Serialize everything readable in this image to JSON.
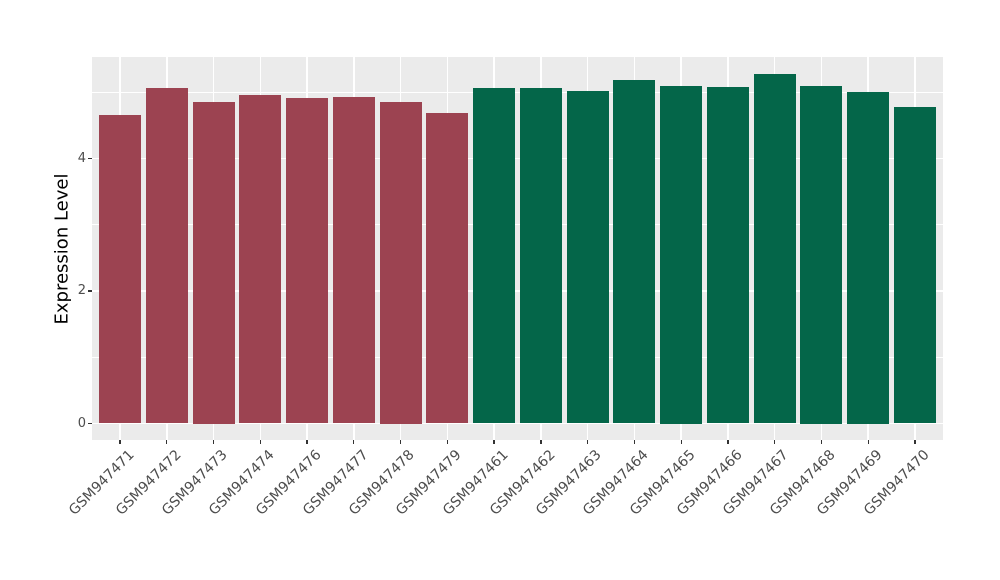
{
  "chart_data": {
    "type": "bar",
    "title": "",
    "xlabel": "",
    "ylabel": "Expression Level",
    "categories": [
      "GSM947471",
      "GSM947472",
      "GSM947473",
      "GSM947474",
      "GSM947476",
      "GSM947477",
      "GSM947478",
      "GSM947479",
      "GSM947461",
      "GSM947462",
      "GSM947463",
      "GSM947464",
      "GSM947465",
      "GSM947466",
      "GSM947467",
      "GSM947468",
      "GSM947469",
      "GSM947470"
    ],
    "values": [
      4.66,
      5.07,
      4.85,
      4.96,
      4.92,
      4.93,
      4.85,
      4.69,
      5.07,
      5.06,
      5.02,
      5.19,
      5.1,
      5.08,
      5.28,
      5.1,
      5.0,
      4.77
    ],
    "bar_colors": [
      "#9C4351",
      "#9C4351",
      "#9C4351",
      "#9C4351",
      "#9C4351",
      "#9C4351",
      "#9C4351",
      "#9C4351",
      "#046649",
      "#046649",
      "#046649",
      "#046649",
      "#046649",
      "#046649",
      "#046649",
      "#046649",
      "#046649",
      "#046649"
    ],
    "group_colors": {
      "left_group": "#9C4351",
      "right_group": "#046649"
    },
    "yticks": [
      0,
      2,
      4
    ],
    "ytick_labels": [
      "0",
      "2",
      "4"
    ],
    "yticks_minor": [
      1,
      3,
      5
    ],
    "ylim": [
      -0.25,
      5.53
    ],
    "grid": "on",
    "legend": "none",
    "panel_background": "#EBEBEB",
    "grid_color": "#FFFFFF",
    "tick_mark_color": "#333333",
    "tick_text_color": "#4D4D4D",
    "axis_title_color": "#000000"
  }
}
